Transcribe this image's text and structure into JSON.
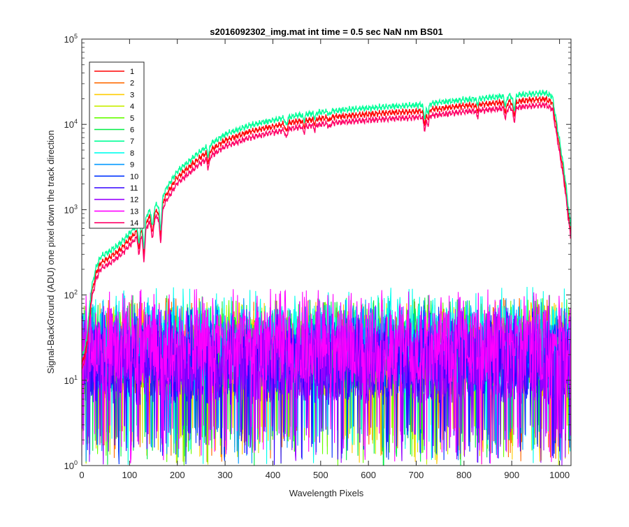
{
  "chart_data": {
    "type": "line",
    "title": "s2016092302_img.mat int time = 0.5 sec  NaN nm BS01",
    "xlabel": "Wavelength Pixels",
    "ylabel": "Signal-BackGround (ADU) one pixel down the track direction",
    "xlim": [
      0,
      1024
    ],
    "ylim": [
      1,
      100000
    ],
    "yscale": "log",
    "x_ticks": [
      0,
      100,
      200,
      300,
      400,
      500,
      600,
      700,
      800,
      900,
      1000
    ],
    "y_ticks": [
      {
        "value": 1,
        "base": "10",
        "exp": "0"
      },
      {
        "value": 10,
        "base": "10",
        "exp": "1"
      },
      {
        "value": 100,
        "base": "10",
        "exp": "2"
      },
      {
        "value": 1000,
        "base": "10",
        "exp": "3"
      },
      {
        "value": 10000,
        "base": "10",
        "exp": "4"
      },
      {
        "value": 100000,
        "base": "10",
        "exp": "5"
      }
    ],
    "grid": false,
    "legend_position": "top-left",
    "signal_profile": {
      "x": [
        0,
        10,
        20,
        30,
        40,
        60,
        80,
        100,
        120,
        140,
        160,
        180,
        200,
        250,
        300,
        350,
        400,
        450,
        500,
        550,
        600,
        650,
        700,
        750,
        800,
        850,
        900,
        950,
        970,
        985,
        1000,
        1010,
        1024
      ],
      "y": [
        15,
        25,
        100,
        180,
        240,
        280,
        340,
        450,
        600,
        800,
        1000,
        1600,
        2400,
        4200,
        6500,
        8200,
        9500,
        10800,
        11800,
        12600,
        13200,
        13800,
        14200,
        15400,
        16500,
        17500,
        18500,
        19500,
        20000,
        18000,
        5500,
        2400,
        500
      ]
    },
    "dips": [
      {
        "x": 120,
        "depth": 0.45,
        "width": 2
      },
      {
        "x": 130,
        "depth": 0.55,
        "width": 2.5
      },
      {
        "x": 148,
        "depth": 0.4,
        "width": 2
      },
      {
        "x": 165,
        "depth": 0.55,
        "width": 2.5
      },
      {
        "x": 265,
        "depth": 0.25,
        "width": 2
      },
      {
        "x": 428,
        "depth": 0.2,
        "width": 2
      },
      {
        "x": 465,
        "depth": 0.15,
        "width": 2
      },
      {
        "x": 488,
        "depth": 0.12,
        "width": 2
      },
      {
        "x": 518,
        "depth": 0.1,
        "width": 2
      },
      {
        "x": 718,
        "depth": 0.3,
        "width": 2.5
      },
      {
        "x": 725,
        "depth": 0.2,
        "width": 2
      },
      {
        "x": 828,
        "depth": 0.15,
        "width": 2
      },
      {
        "x": 887,
        "depth": 0.25,
        "width": 2
      },
      {
        "x": 905,
        "depth": 0.3,
        "width": 2.5
      }
    ],
    "series": [
      {
        "name": "1",
        "color": "#ff0000",
        "kind": "signal",
        "scale": 1.0
      },
      {
        "name": "2",
        "color": "#ff6a00",
        "kind": "noise",
        "level": 22
      },
      {
        "name": "3",
        "color": "#ffcc00",
        "kind": "noise",
        "level": 20
      },
      {
        "name": "4",
        "color": "#c8ee00",
        "kind": "noise",
        "level": 20
      },
      {
        "name": "5",
        "color": "#66ff00",
        "kind": "noise",
        "level": 22
      },
      {
        "name": "6",
        "color": "#00ee44",
        "kind": "noise",
        "level": 24
      },
      {
        "name": "7",
        "color": "#00ff99",
        "kind": "signal",
        "scale": 1.18
      },
      {
        "name": "8",
        "color": "#00ffee",
        "kind": "noise",
        "level": 30
      },
      {
        "name": "9",
        "color": "#0099ff",
        "kind": "noise",
        "level": 22
      },
      {
        "name": "10",
        "color": "#0033ff",
        "kind": "noise",
        "level": 18
      },
      {
        "name": "11",
        "color": "#3300ff",
        "kind": "noise",
        "level": 16
      },
      {
        "name": "12",
        "color": "#9900ff",
        "kind": "noise",
        "level": 18
      },
      {
        "name": "13",
        "color": "#ff00ff",
        "kind": "noise",
        "level": 28
      },
      {
        "name": "14",
        "color": "#ff0066",
        "kind": "signal",
        "scale": 0.85
      }
    ]
  }
}
